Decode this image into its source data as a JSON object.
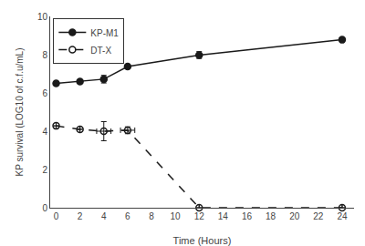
{
  "chart_data": {
    "type": "line",
    "xlabel": "Time (Hours)",
    "ylabel": "KP survival (LOG10 of c.f.u/mL)",
    "x": [
      0,
      2,
      4,
      6,
      12,
      24
    ],
    "series": [
      {
        "name": "KP-M1",
        "color": "#1a1a1a",
        "marker": "circle",
        "line_style": "solid",
        "values": [
          6.5,
          6.6,
          6.72,
          7.38,
          7.98,
          8.78
        ],
        "yerr": [
          0.0,
          0.0,
          0.2,
          0.12,
          0.18,
          0.0
        ]
      },
      {
        "name": "DT-X",
        "color": "#1a1a1a",
        "marker": "circle-open",
        "line_style": "dash",
        "values": [
          4.28,
          4.1,
          4.0,
          4.05,
          0.0,
          0.0
        ],
        "yerr": [
          0.0,
          0.0,
          0.5,
          0.18,
          0.0,
          0.0
        ],
        "xerr": [
          0.0,
          0.0,
          0.6,
          0.6,
          0.0,
          0.0
        ]
      }
    ],
    "xlim": [
      -0.5,
      25
    ],
    "ylim": [
      0,
      10
    ],
    "xticks": [
      0,
      2,
      4,
      6,
      8,
      10,
      12,
      14,
      16,
      18,
      20,
      22,
      24
    ],
    "yticks": [
      0,
      2,
      4,
      6,
      8,
      10
    ],
    "grid": false,
    "legend": "upper left"
  }
}
